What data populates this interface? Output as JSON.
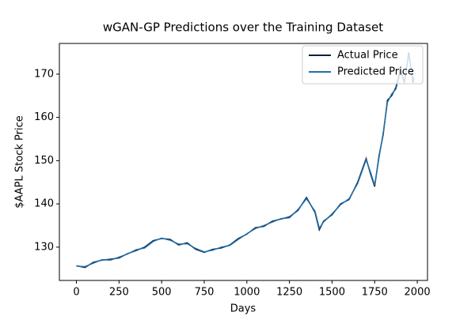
{
  "chart_data": {
    "type": "line",
    "title": "wGAN-GP Predictions over the Training Dataset",
    "x_label": "Days",
    "y_label": "$AAPL Stock Price",
    "x": [
      0,
      50,
      100,
      150,
      200,
      250,
      300,
      350,
      400,
      450,
      500,
      550,
      600,
      650,
      700,
      750,
      800,
      850,
      900,
      950,
      1000,
      1050,
      1100,
      1150,
      1200,
      1250,
      1300,
      1350,
      1400,
      1425,
      1450,
      1500,
      1550,
      1600,
      1650,
      1700,
      1725,
      1750,
      1775,
      1800,
      1825,
      1850,
      1875,
      1900,
      1925,
      1950,
      1975,
      1980
    ],
    "series": [
      {
        "name": "Actual Price",
        "color": "#0f1d3d",
        "values": [
          125.7,
          125.3,
          126.5,
          127,
          127.2,
          127.5,
          128.5,
          129.2,
          130,
          131.5,
          132,
          131.8,
          130.5,
          131,
          129.5,
          128.8,
          129.5,
          129.8,
          130.5,
          132,
          133,
          134.5,
          134.8,
          136,
          136.5,
          137,
          138.5,
          141.5,
          138,
          134,
          136,
          137.5,
          140,
          141,
          145,
          150.5,
          147,
          144,
          151,
          156,
          164,
          165,
          167,
          171,
          168,
          175,
          168,
          169
        ]
      },
      {
        "name": "Predicted Price",
        "color": "#1f6fa8",
        "values": [
          125.6,
          125.5,
          126.3,
          127.1,
          127.0,
          127.7,
          128.4,
          129.4,
          129.8,
          131.3,
          132.1,
          131.6,
          130.7,
          130.8,
          129.7,
          128.9,
          129.3,
          130.0,
          130.4,
          131.8,
          133.1,
          134.3,
          135.0,
          135.8,
          136.6,
          136.8,
          138.7,
          141.2,
          138.3,
          134.4,
          135.8,
          137.7,
          139.8,
          141.2,
          144.7,
          150.2,
          147.4,
          144.3,
          150.6,
          156.4,
          163.5,
          165.4,
          166.6,
          170.5,
          168.4,
          174.5,
          168.5,
          169.3
        ]
      }
    ],
    "xlim": [
      -100,
      2060
    ],
    "ylim": [
      122.3,
      177.1
    ],
    "xticks": [
      0,
      250,
      500,
      750,
      1000,
      1250,
      1500,
      1750,
      2000
    ],
    "yticks": [
      130,
      140,
      150,
      160,
      170
    ],
    "legend": "upper right"
  }
}
